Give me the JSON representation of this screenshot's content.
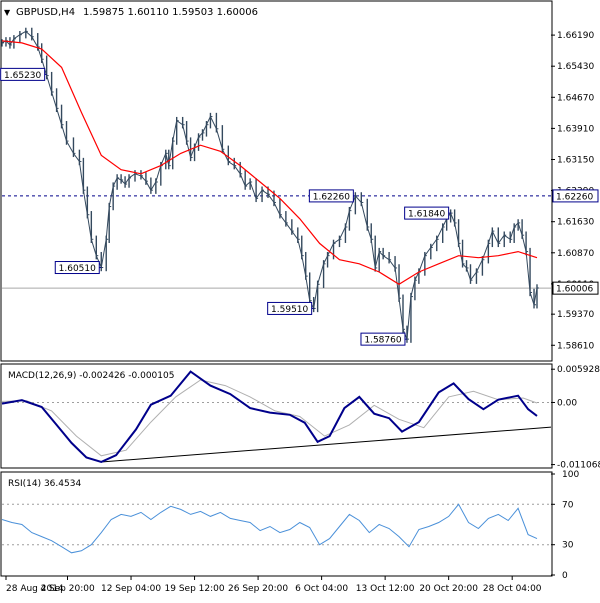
{
  "header": {
    "arrow": "▼",
    "title": "GBPUSD,H4",
    "ohlc": "1.59875 1.60110 1.59503 1.60006"
  },
  "colors": {
    "price": "#34495e",
    "ma": "#ff0000",
    "macd_main": "#00008b",
    "macd_signal": "#b0b0b0",
    "rsi": "#4a90d9",
    "level_line": "#00008b",
    "current_line": "#a9a9a9",
    "label_border": "#00008b"
  },
  "chart_data": [
    {
      "type": "line",
      "name": "price",
      "x_label_type": "date-time",
      "xticks": [
        "28 Aug 2014",
        "4 Sep 20:00",
        "12 Sep 04:00",
        "19 Sep 12:00",
        "26 Sep 20:00",
        "6 Oct 04:00",
        "13 Oct 12:00",
        "20 Oct 20:00",
        "28 Oct 04:00"
      ],
      "yticks": [
        "1.66190",
        "1.65430",
        "1.64670",
        "1.63910",
        "1.63150",
        "1.62390",
        "1.61630",
        "1.60870",
        "1.60110",
        "1.59370",
        "1.58610"
      ],
      "ylim": [
        1.5825,
        1.6695
      ],
      "series": [
        {
          "name": "close",
          "x": [
            0,
            4,
            8,
            12,
            18,
            24,
            30,
            36,
            40,
            45,
            50,
            55,
            60,
            65,
            72,
            78,
            82,
            86,
            90,
            95,
            100,
            105,
            108,
            112,
            116,
            120,
            124,
            128,
            134,
            140,
            145,
            150,
            155,
            160,
            165,
            168,
            172,
            176,
            182,
            186,
            190,
            194,
            198,
            202,
            206,
            210,
            216,
            222,
            228,
            234,
            240,
            245,
            250,
            256,
            262,
            268,
            274,
            280,
            286,
            292,
            298,
            302,
            306,
            310,
            314,
            318,
            324,
            328,
            334,
            340,
            346,
            350,
            356,
            362,
            368,
            372,
            376,
            380,
            384,
            390,
            396,
            400,
            404,
            408,
            412,
            416,
            420,
            426,
            432,
            438,
            444,
            448,
            452,
            456,
            460,
            464,
            468,
            472,
            478,
            484,
            490,
            494,
            500,
            506,
            512,
            516,
            520,
            524,
            528,
            532,
            536,
            539
          ],
          "values": [
            1.66,
            1.6605,
            1.6595,
            1.661,
            1.662,
            1.6628,
            1.6615,
            1.659,
            1.656,
            1.652,
            1.648,
            1.644,
            1.64,
            1.636,
            1.633,
            1.631,
            1.624,
            1.618,
            1.612,
            1.608,
            1.6051,
            1.612,
            1.62,
            1.625,
            1.627,
            1.6265,
            1.6255,
            1.627,
            1.628,
            1.6275,
            1.6262,
            1.624,
            1.626,
            1.63,
            1.633,
            1.63,
            1.636,
            1.641,
            1.64,
            1.636,
            1.632,
            1.6345,
            1.637,
            1.638,
            1.64,
            1.642,
            1.639,
            1.634,
            1.631,
            1.63,
            1.628,
            1.625,
            1.626,
            1.622,
            1.624,
            1.623,
            1.621,
            1.618,
            1.616,
            1.614,
            1.612,
            1.608,
            1.603,
            1.597,
            1.5951,
            1.601,
            1.606,
            1.608,
            1.611,
            1.612,
            1.615,
            1.619,
            1.6226,
            1.621,
            1.615,
            1.612,
            1.605,
            1.609,
            1.608,
            1.607,
            1.605,
            1.5976,
            1.59,
            1.5876,
            1.598,
            1.602,
            1.604,
            1.608,
            1.61,
            1.612,
            1.615,
            1.617,
            1.6184,
            1.616,
            1.611,
            1.606,
            1.605,
            1.602,
            1.604,
            1.607,
            1.611,
            1.614,
            1.611,
            1.613,
            1.612,
            1.615,
            1.616,
            1.613,
            1.609,
            1.599,
            1.596,
            1.6001
          ]
        },
        {
          "name": "ma",
          "x": [
            0,
            20,
            40,
            60,
            80,
            100,
            120,
            140,
            160,
            180,
            200,
            220,
            240,
            260,
            280,
            300,
            320,
            340,
            360,
            380,
            400,
            420,
            440,
            460,
            480,
            500,
            520,
            539
          ],
          "values": [
            1.6605,
            1.66,
            1.6585,
            1.654,
            1.643,
            1.6325,
            1.629,
            1.628,
            1.63,
            1.633,
            1.635,
            1.6335,
            1.63,
            1.626,
            1.622,
            1.617,
            1.611,
            1.607,
            1.606,
            1.604,
            1.601,
            1.604,
            1.606,
            1.608,
            1.6075,
            1.608,
            1.609,
            1.6075
          ]
        }
      ],
      "annotations": [
        "1.65230",
        "1.62260",
        "1.61840",
        "1.60510",
        "1.59510",
        "1.58760"
      ],
      "current_price_label": "1.60006",
      "level_label": "1.62260"
    },
    {
      "type": "line",
      "name": "macd",
      "title": "MACD(12,26,9) -0.002426 -0.000105",
      "yticks": [
        "0.005928",
        "0.00",
        "-0.011068"
      ],
      "ylim": [
        -0.0115,
        0.0065
      ],
      "series": [
        {
          "name": "main",
          "x": [
            0,
            20,
            40,
            55,
            70,
            85,
            100,
            115,
            135,
            150,
            170,
            190,
            210,
            230,
            250,
            270,
            290,
            305,
            318,
            330,
            345,
            360,
            375,
            390,
            403,
            420,
            440,
            455,
            470,
            485,
            500,
            520,
            530,
            539
          ],
          "values": [
            -0.0002,
            0.0004,
            -0.0008,
            -0.004,
            -0.0072,
            -0.0098,
            -0.0106,
            -0.0094,
            -0.0048,
            -0.0004,
            0.0012,
            0.0055,
            0.003,
            0.0015,
            -0.001,
            -0.0018,
            -0.0022,
            -0.0036,
            -0.007,
            -0.006,
            -0.001,
            0.001,
            -0.002,
            -0.0028,
            -0.0052,
            -0.0035,
            0.0018,
            0.0034,
            0.0006,
            -0.0012,
            0.0005,
            0.0012,
            -0.0012,
            -0.0024
          ]
        },
        {
          "name": "signal",
          "x": [
            0,
            25,
            50,
            75,
            100,
            125,
            150,
            175,
            200,
            225,
            250,
            275,
            300,
            325,
            350,
            375,
            400,
            425,
            450,
            475,
            500,
            525,
            539
          ],
          "values": [
            0.0002,
            0.0003,
            -0.0015,
            -0.006,
            -0.0095,
            -0.0085,
            -0.0035,
            0.001,
            0.004,
            0.003,
            0.001,
            -0.0015,
            -0.0025,
            -0.006,
            -0.004,
            -0.0005,
            -0.003,
            -0.0045,
            0.001,
            0.002,
            0.0005,
            0.0008,
            -0.0001
          ]
        }
      ]
    },
    {
      "type": "line",
      "name": "rsi",
      "title": "RSI(14) 36.4534",
      "yticks": [
        "100",
        "70",
        "30",
        "0"
      ],
      "ylim": [
        0,
        100
      ],
      "reference_levels": [
        70,
        30
      ],
      "series": [
        {
          "name": "rsi",
          "x": [
            0,
            10,
            20,
            30,
            40,
            50,
            60,
            70,
            80,
            90,
            100,
            110,
            120,
            130,
            140,
            150,
            160,
            170,
            180,
            190,
            200,
            210,
            220,
            230,
            240,
            250,
            260,
            270,
            280,
            290,
            300,
            310,
            320,
            330,
            340,
            350,
            360,
            370,
            380,
            390,
            400,
            410,
            420,
            430,
            440,
            450,
            460,
            470,
            480,
            490,
            500,
            510,
            520,
            530,
            539
          ],
          "values": [
            55,
            52,
            50,
            42,
            38,
            34,
            28,
            22,
            24,
            30,
            42,
            55,
            60,
            58,
            62,
            55,
            62,
            68,
            65,
            60,
            63,
            58,
            62,
            56,
            54,
            52,
            44,
            48,
            42,
            45,
            52,
            47,
            30,
            36,
            48,
            60,
            54,
            42,
            50,
            46,
            38,
            28,
            45,
            48,
            52,
            58,
            70,
            52,
            46,
            56,
            60,
            54,
            66,
            40,
            36
          ]
        }
      ]
    }
  ]
}
